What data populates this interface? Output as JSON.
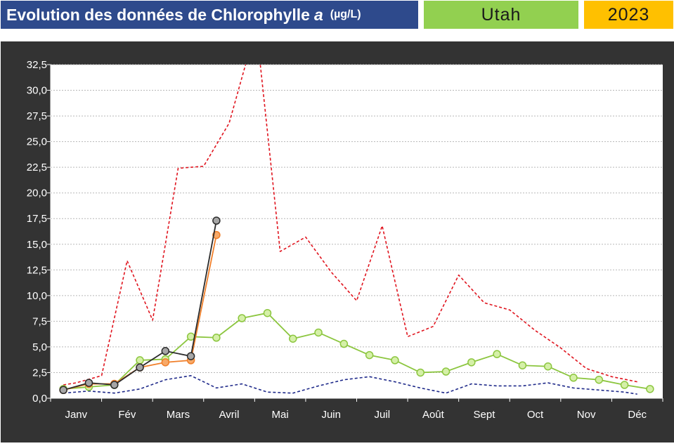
{
  "header": {
    "title_main": "Evolution des données de Chlorophylle",
    "title_symbol": "a",
    "title_unit": "(µg/L)",
    "region": "Utah",
    "year": "2023"
  },
  "colors": {
    "title_bg": "#2e4a8c",
    "region_bg": "#92d050",
    "year_bg": "#ffc000",
    "panel_bg": "#333333",
    "plot_bg": "#ffffff",
    "max_line": "#e0141e",
    "min_line": "#1f2a8a",
    "mean_line": "#8cc63f",
    "series_orange": "#f07f2a",
    "series_black": "#2b2b2b"
  },
  "chart_data": {
    "type": "line",
    "x_unit": "month",
    "xlim": [
      0,
      12
    ],
    "ylim": [
      0,
      32.5
    ],
    "grid": true,
    "yticks": [
      "0,0",
      "2,5",
      "5,0",
      "7,5",
      "10,0",
      "12,5",
      "15,0",
      "17,5",
      "20,0",
      "22,5",
      "25,0",
      "27,5",
      "30,0",
      "32,5"
    ],
    "months": [
      "Janv",
      "Fév",
      "Mars",
      "Avril",
      "Mai",
      "Juin",
      "Juil",
      "Août",
      "Sept",
      "Oct",
      "Nov",
      "Déc"
    ],
    "series": [
      {
        "style": "dashed",
        "color": "#e0141e",
        "markers": false,
        "points": [
          [
            0.25,
            1.3
          ],
          [
            0.5,
            1.5
          ],
          [
            1.0,
            2.2
          ],
          [
            1.5,
            13.4
          ],
          [
            2.0,
            7.6
          ],
          [
            2.5,
            22.4
          ],
          [
            3.0,
            22.6
          ],
          [
            3.5,
            26.8
          ],
          [
            3.85,
            33
          ],
          [
            4.1,
            33
          ],
          [
            4.5,
            14.3
          ],
          [
            5.0,
            15.7
          ],
          [
            5.5,
            12.3
          ],
          [
            6.0,
            9.5
          ],
          [
            6.5,
            16.8
          ],
          [
            7.0,
            6.0
          ],
          [
            7.5,
            7.0
          ],
          [
            8.0,
            12.0
          ],
          [
            8.5,
            9.3
          ],
          [
            9.0,
            8.6
          ],
          [
            9.5,
            6.6
          ],
          [
            10.0,
            4.9
          ],
          [
            10.5,
            2.9
          ],
          [
            11.0,
            2.1
          ],
          [
            11.5,
            1.6
          ]
        ]
      },
      {
        "style": "dashed",
        "color": "#1f2a8a",
        "markers": false,
        "points": [
          [
            0.25,
            0.5
          ],
          [
            0.75,
            0.7
          ],
          [
            1.25,
            0.5
          ],
          [
            1.75,
            0.9
          ],
          [
            2.25,
            1.8
          ],
          [
            2.75,
            2.2
          ],
          [
            3.25,
            1.0
          ],
          [
            3.75,
            1.4
          ],
          [
            4.25,
            0.6
          ],
          [
            4.75,
            0.5
          ],
          [
            5.25,
            1.2
          ],
          [
            5.75,
            1.8
          ],
          [
            6.25,
            2.1
          ],
          [
            6.75,
            1.6
          ],
          [
            7.25,
            1.0
          ],
          [
            7.75,
            0.5
          ],
          [
            8.25,
            1.4
          ],
          [
            8.75,
            1.2
          ],
          [
            9.25,
            1.2
          ],
          [
            9.75,
            1.5
          ],
          [
            10.25,
            1.0
          ],
          [
            10.75,
            0.8
          ],
          [
            11.25,
            0.6
          ],
          [
            11.5,
            0.4
          ]
        ]
      },
      {
        "style": "solid",
        "color": "#8cc63f",
        "markers": true,
        "points": [
          [
            0.25,
            0.9
          ],
          [
            0.75,
            1.1
          ],
          [
            1.25,
            1.3
          ],
          [
            1.75,
            3.7
          ],
          [
            2.25,
            3.8
          ],
          [
            2.75,
            6.0
          ],
          [
            3.25,
            5.9
          ],
          [
            3.75,
            7.8
          ],
          [
            4.25,
            8.3
          ],
          [
            4.75,
            5.8
          ],
          [
            5.25,
            6.4
          ],
          [
            5.75,
            5.3
          ],
          [
            6.25,
            4.2
          ],
          [
            6.75,
            3.7
          ],
          [
            7.25,
            2.5
          ],
          [
            7.75,
            2.6
          ],
          [
            8.25,
            3.5
          ],
          [
            8.75,
            4.3
          ],
          [
            9.25,
            3.2
          ],
          [
            9.75,
            3.1
          ],
          [
            10.25,
            2.0
          ],
          [
            10.75,
            1.8
          ],
          [
            11.25,
            1.3
          ],
          [
            11.75,
            0.9
          ]
        ]
      },
      {
        "style": "solid",
        "color": "#f07f2a",
        "markers": true,
        "points": [
          [
            0.25,
            0.8
          ],
          [
            0.75,
            1.4
          ],
          [
            1.25,
            1.4
          ],
          [
            1.75,
            3.0
          ],
          [
            2.25,
            3.5
          ],
          [
            2.75,
            3.7
          ],
          [
            3.25,
            15.9
          ]
        ]
      },
      {
        "style": "solid",
        "color": "#2b2b2b",
        "markers": true,
        "points": [
          [
            0.25,
            0.8
          ],
          [
            0.75,
            1.5
          ],
          [
            1.25,
            1.3
          ],
          [
            1.75,
            3.0
          ],
          [
            2.25,
            4.6
          ],
          [
            2.75,
            4.1
          ],
          [
            3.25,
            17.3
          ]
        ]
      }
    ]
  }
}
